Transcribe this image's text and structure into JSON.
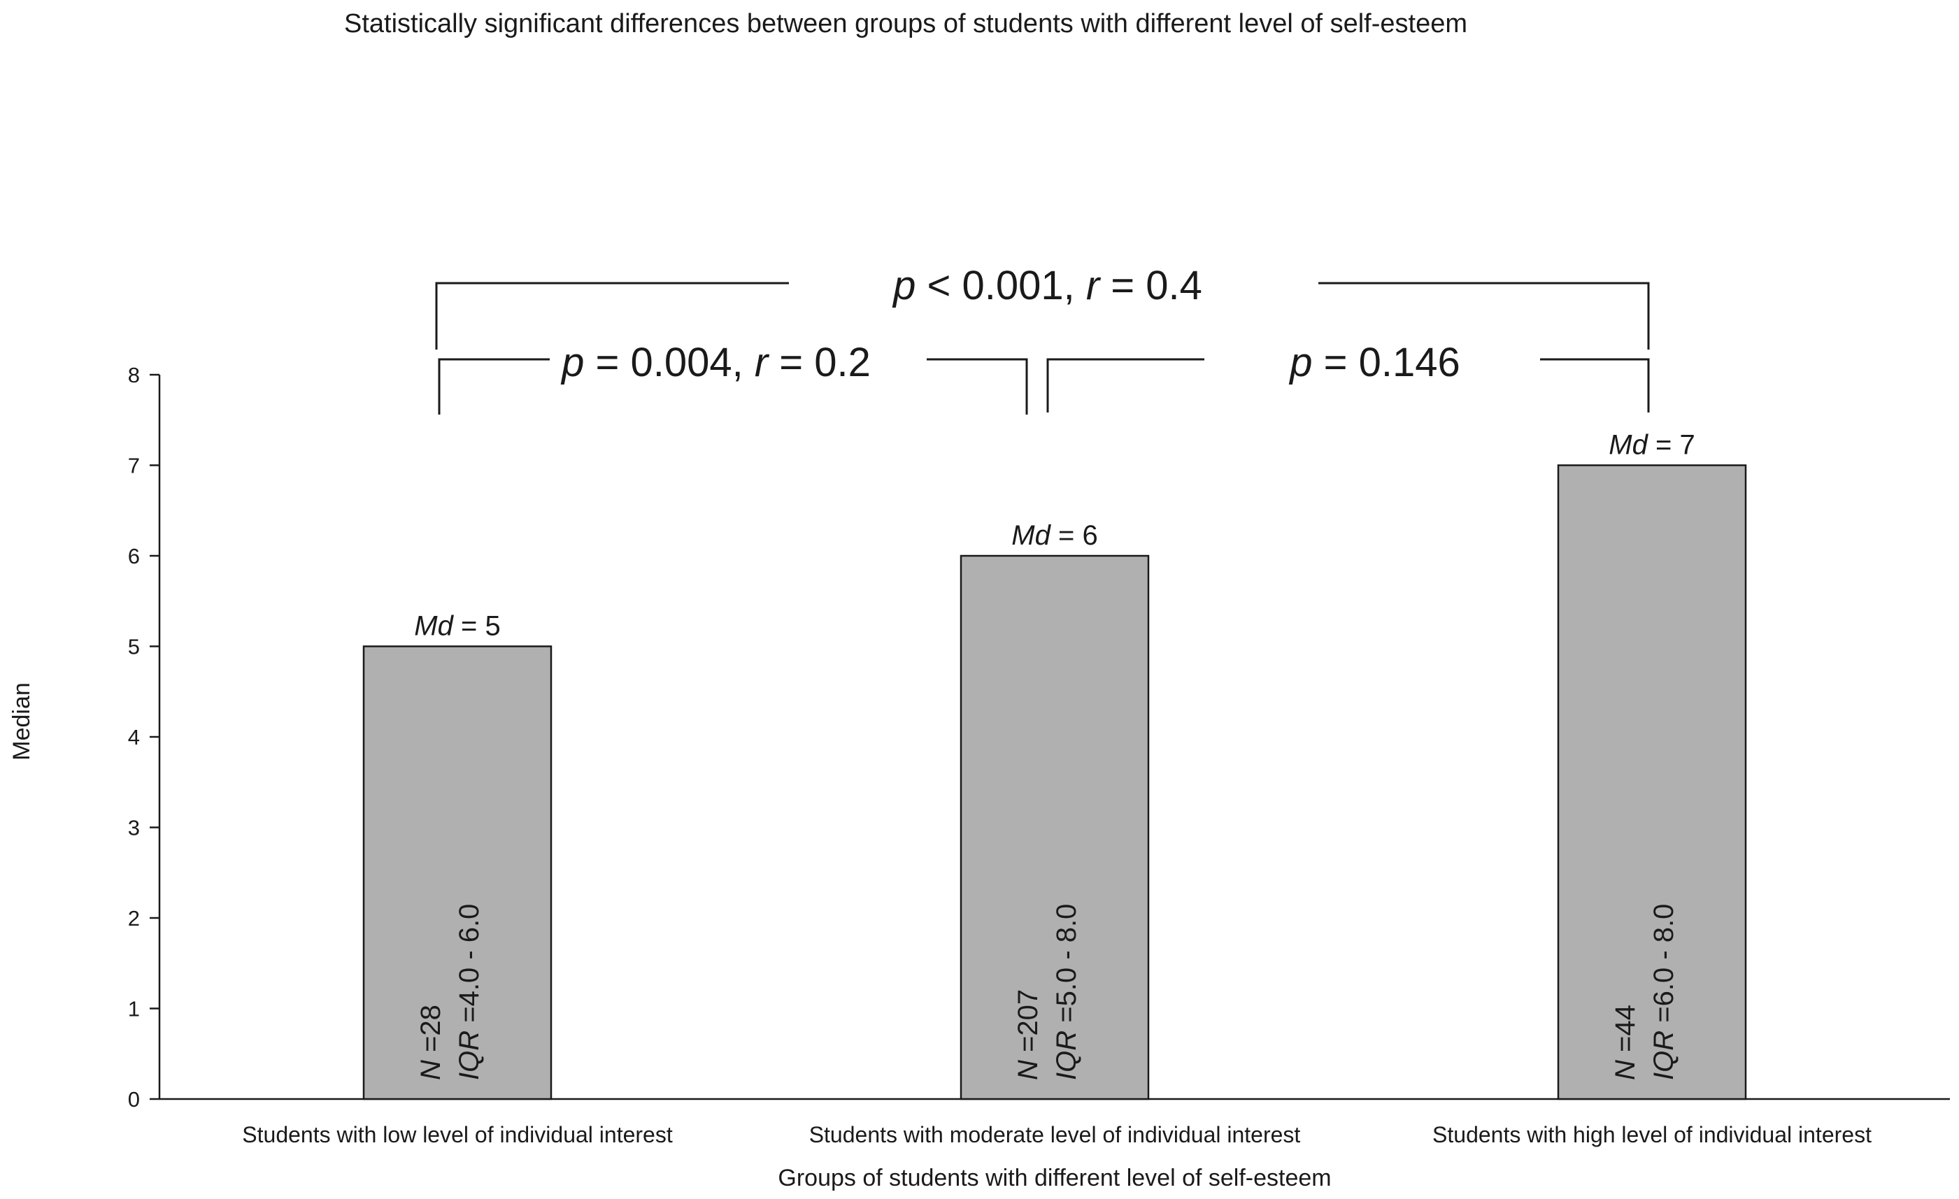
{
  "chart_data": {
    "type": "bar",
    "title": "Statistically significant differences between groups of students with different level of self-esteem",
    "xlabel": "Groups of students with different level of self-esteem",
    "ylabel": "Median",
    "ylim": [
      0,
      8
    ],
    "yticks": [
      0,
      1,
      2,
      3,
      4,
      5,
      6,
      7,
      8
    ],
    "grid": false,
    "categories": [
      "Students with low level of individual interest",
      "Students with moderate level of individual interest",
      "Students with high level of individual interest"
    ],
    "values": [
      5,
      6,
      7
    ],
    "bar_color": "#b0b0b0",
    "md_prefix": "Md",
    "md_labels": [
      " = 5",
      " = 6",
      " = 7"
    ],
    "n_prefix": "N",
    "n_labels": [
      " =28",
      " =207",
      " =44"
    ],
    "iqr_prefix": "IQR",
    "iqr_labels": [
      " =4.0 - 6.0",
      " =5.0 - 8.0",
      " =6.0 - 8.0"
    ],
    "comparisons": [
      {
        "from": 0,
        "to": 2,
        "p_symbol": "p",
        "p_text": " < 0.001, ",
        "r_symbol": "r",
        "r_text": " = 0.4"
      },
      {
        "from": 0,
        "to": 1,
        "p_symbol": "p",
        "p_text": " = 0.004, ",
        "r_symbol": "r",
        "r_text": " = 0.2"
      },
      {
        "from": 1,
        "to": 2,
        "p_symbol": "p",
        "p_text": " = 0.146",
        "r_symbol": "",
        "r_text": ""
      }
    ]
  }
}
